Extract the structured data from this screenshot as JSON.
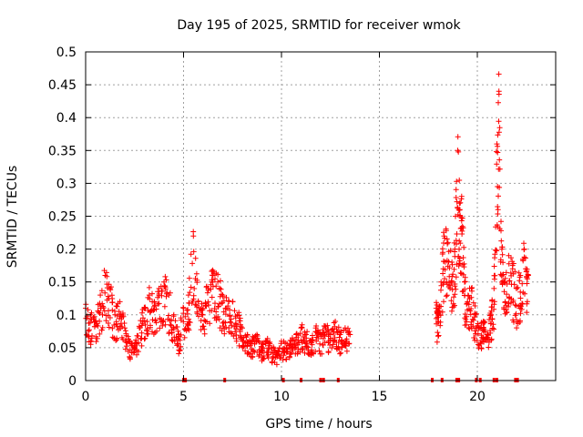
{
  "chart_data": {
    "type": "scatter",
    "title": "Day 195 of 2025, SRMTID for receiver wmok",
    "xlabel": "GPS time / hours",
    "ylabel": "SRMTID / TECUs",
    "xlim": [
      0,
      24
    ],
    "ylim": [
      0,
      0.5
    ],
    "grid": true,
    "marker": "+",
    "color": "#ff0000",
    "x_ticks": [
      0,
      5,
      10,
      15,
      20
    ],
    "y_ticks": [
      0,
      0.05,
      0.1,
      0.15,
      0.2,
      0.25,
      0.3,
      0.35,
      0.4,
      0.45,
      0.5
    ],
    "x_tick_labels": [
      "0",
      "5",
      "10",
      "15",
      "20"
    ],
    "y_tick_labels": [
      "0",
      "0.05",
      "0.1",
      "0.15",
      "0.2",
      "0.25",
      "0.3",
      "0.35",
      "0.4",
      "0.45",
      "0.5"
    ],
    "series": [
      {
        "name": "SRMTID",
        "description": "approximate envelope of the scattered samples",
        "x": [
          0.0,
          0.25,
          0.5,
          0.75,
          1.0,
          1.25,
          1.5,
          1.75,
          2.0,
          2.25,
          2.5,
          2.75,
          3.0,
          3.25,
          3.5,
          3.75,
          4.0,
          4.25,
          4.5,
          4.75,
          5.0,
          5.25,
          5.5,
          5.75,
          6.0,
          6.25,
          6.5,
          6.75,
          7.0,
          7.25,
          7.5,
          7.75,
          8.0,
          8.25,
          8.5,
          8.75,
          9.0,
          9.25,
          9.5,
          9.75,
          10.0,
          10.25,
          10.5,
          10.75,
          11.0,
          11.25,
          11.5,
          11.75,
          12.0,
          12.25,
          12.5,
          12.75,
          13.0,
          13.25,
          13.5,
          17.9,
          18.0,
          18.15,
          18.3,
          18.5,
          18.7,
          18.85,
          19.0,
          19.1,
          19.2,
          19.35,
          19.5,
          19.7,
          19.9,
          20.1,
          20.3,
          20.5,
          20.7,
          20.85,
          21.0,
          21.1,
          21.25,
          21.4,
          21.6,
          21.8,
          22.0,
          22.2,
          22.4,
          22.6
        ],
        "y": [
          0.11,
          0.1,
          0.09,
          0.13,
          0.16,
          0.14,
          0.1,
          0.12,
          0.08,
          0.06,
          0.05,
          0.08,
          0.11,
          0.13,
          0.12,
          0.14,
          0.15,
          0.13,
          0.1,
          0.07,
          0.11,
          0.13,
          0.22,
          0.12,
          0.11,
          0.14,
          0.16,
          0.15,
          0.13,
          0.11,
          0.12,
          0.1,
          0.08,
          0.07,
          0.06,
          0.07,
          0.05,
          0.06,
          0.05,
          0.04,
          0.06,
          0.05,
          0.06,
          0.07,
          0.08,
          0.07,
          0.06,
          0.08,
          0.07,
          0.08,
          0.07,
          0.09,
          0.07,
          0.08,
          0.07,
          0.11,
          0.1,
          0.15,
          0.22,
          0.21,
          0.18,
          0.2,
          0.35,
          0.26,
          0.28,
          0.15,
          0.12,
          0.14,
          0.1,
          0.08,
          0.09,
          0.07,
          0.1,
          0.14,
          0.36,
          0.44,
          0.2,
          0.15,
          0.19,
          0.17,
          0.14,
          0.16,
          0.2,
          0.16
        ]
      }
    ],
    "axis_markers": {
      "description": "small red ticks drawn on the x axis",
      "x": [
        5.0,
        5.1,
        7.1,
        10.1,
        11.0,
        12.0,
        12.15,
        12.9,
        17.7,
        18.2,
        18.95,
        19.05,
        19.95,
        20.15,
        20.85,
        21.0,
        21.95,
        22.05
      ]
    }
  }
}
